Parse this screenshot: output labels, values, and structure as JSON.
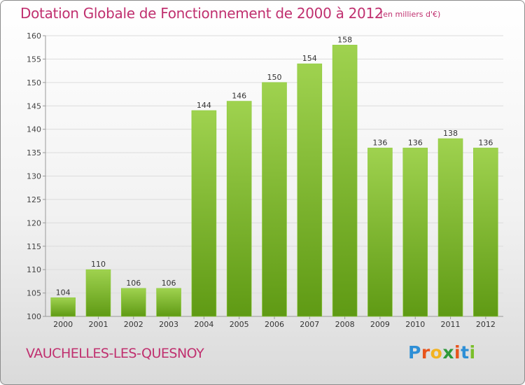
{
  "chart_data": {
    "type": "bar",
    "title": "Dotation Globale de Fonctionnement de 2000 à 2012",
    "unit": "(en milliers d'€)",
    "categories": [
      "2000",
      "2001",
      "2002",
      "2003",
      "2004",
      "2005",
      "2006",
      "2007",
      "2008",
      "2009",
      "2010",
      "2011",
      "2012"
    ],
    "values": [
      104,
      110,
      106,
      106,
      144,
      146,
      150,
      154,
      158,
      136,
      136,
      138,
      136
    ],
    "ylim": [
      100,
      160
    ],
    "yticks": [
      100,
      105,
      110,
      115,
      120,
      125,
      130,
      135,
      140,
      145,
      150,
      155,
      160
    ],
    "xlabel": "",
    "ylabel": "",
    "grid": true,
    "bar_color": "#7bba2d"
  },
  "footer": {
    "city": "VAUCHELLES-LES-QUESNOY",
    "logo_letters": [
      "P",
      "r",
      "o",
      "x",
      "i",
      "t",
      "i"
    ],
    "logo_colors": [
      "#2e8fd6",
      "#e8541c",
      "#f2b321",
      "#2f9a3a",
      "#e8541c",
      "#2e8fd6",
      "#7abf2a"
    ]
  }
}
